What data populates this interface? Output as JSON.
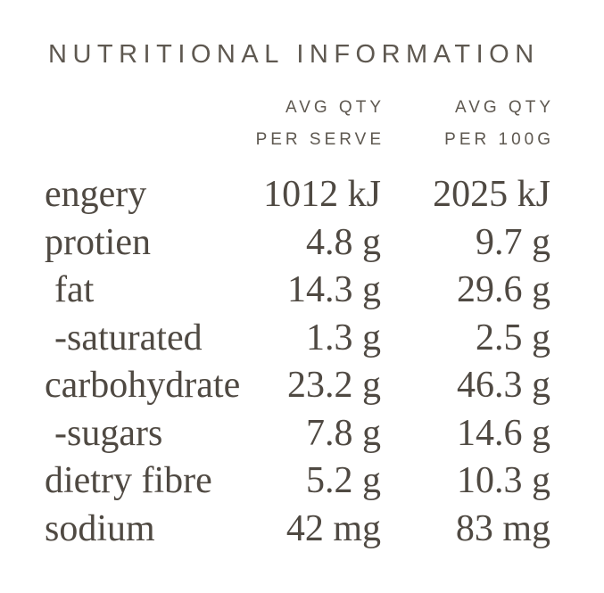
{
  "title": "NUTRITIONAL INFORMATION",
  "columns": {
    "per_serve": {
      "line1": "AVG QTY",
      "line2": "PER SERVE"
    },
    "per_100g": {
      "line1": "AVG QTY",
      "line2": "PER 100G"
    }
  },
  "rows": [
    {
      "label": "engery",
      "per_serve": "1012 kJ",
      "per_100g": "2025 kJ",
      "indent": false
    },
    {
      "label": "protien",
      "per_serve": "4.8 g",
      "per_100g": "9.7 g",
      "indent": false
    },
    {
      "label": "fat",
      "per_serve": "14.3 g",
      "per_100g": "29.6 g",
      "indent": true
    },
    {
      "label": "-saturated",
      "per_serve": "1.3 g",
      "per_100g": "2.5 g",
      "indent": true
    },
    {
      "label": "carbohydrate",
      "per_serve": "23.2 g",
      "per_100g": "46.3 g",
      "indent": false
    },
    {
      "label": "-sugars",
      "per_serve": "7.8 g",
      "per_100g": "14.6 g",
      "indent": true
    },
    {
      "label": "dietry fibre",
      "per_serve": "5.2 g",
      "per_100g": "10.3 g",
      "indent": false
    },
    {
      "label": "sodium",
      "per_serve": "42 mg",
      "per_100g": "83 mg",
      "indent": false
    }
  ],
  "colors": {
    "background": "#ffffff",
    "title": "#5e5850",
    "header": "#5e5850",
    "body": "#4f4942"
  }
}
